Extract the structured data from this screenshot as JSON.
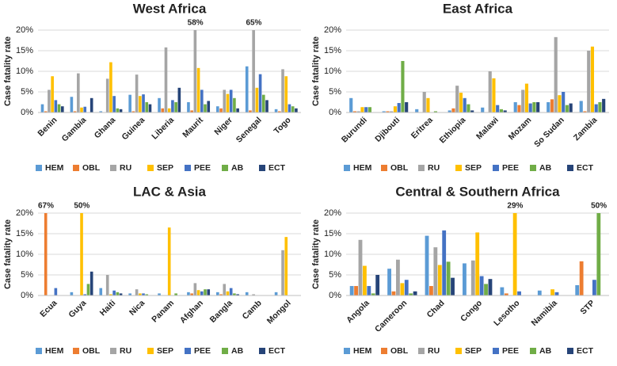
{
  "chart_data": [
    {
      "type": "bar",
      "title": "West Africa",
      "ylabel": "Case fatality rate",
      "categories": [
        "Benin",
        "Gambia",
        "Ghana",
        "Guinea",
        "Liberia",
        "Maurit",
        "Niger",
        "Senegal",
        "Togo"
      ],
      "series": [
        {
          "name": "HEM",
          "color": "#5b9bd5",
          "values": [
            2,
            3.8,
            0.3,
            4.3,
            3.5,
            2.5,
            1.5,
            11.2,
            0.8
          ]
        },
        {
          "name": "OBL",
          "color": "#ed7d31",
          "values": [
            0.3,
            0.3,
            0,
            0.3,
            1,
            0.5,
            1,
            0.5,
            0.3
          ]
        },
        {
          "name": "RU",
          "color": "#a5a5a5",
          "values": [
            5.5,
            9.5,
            8.2,
            9.2,
            15.8,
            58,
            5.5,
            65,
            10.5
          ],
          "value_labels": [
            null,
            null,
            null,
            null,
            null,
            "58%",
            null,
            "65%",
            null
          ]
        },
        {
          "name": "SEP",
          "color": "#ffc000",
          "values": [
            8.8,
            1.2,
            12.2,
            4,
            1,
            10.8,
            4.5,
            6,
            8.8
          ]
        },
        {
          "name": "PEE",
          "color": "#4472c4",
          "values": [
            3,
            1.4,
            4,
            4.4,
            3,
            5.5,
            5.5,
            9.3,
            2
          ]
        },
        {
          "name": "AB",
          "color": "#70ad47",
          "values": [
            2,
            0,
            1,
            2.5,
            2.5,
            2,
            3.5,
            4.3,
            1.5
          ]
        },
        {
          "name": "ECT",
          "color": "#264478",
          "values": [
            1.5,
            3.5,
            0.8,
            2,
            6,
            2.8,
            1,
            3,
            1
          ]
        }
      ],
      "ylim": [
        0,
        20
      ],
      "yticks": [
        {
          "value": 0,
          "label": "0%"
        },
        {
          "value": 5,
          "label": "5%"
        },
        {
          "value": 10,
          "label": "10%"
        },
        {
          "value": 15,
          "label": "15%"
        },
        {
          "value": 20,
          "label": "20%"
        }
      ],
      "grid": true,
      "legend": "bottom"
    },
    {
      "type": "bar",
      "title": "East Africa",
      "ylabel": "Case fatality rate",
      "categories": [
        "Burundi",
        "Djibouti",
        "Eritrea",
        "Ethiopia",
        "Malawi",
        "Mozam",
        "So Sudan",
        "Zambia"
      ],
      "series": [
        {
          "name": "HEM",
          "color": "#5b9bd5",
          "values": [
            3.5,
            0.3,
            0.8,
            0.5,
            1.2,
            2.5,
            2.5,
            2.8
          ]
        },
        {
          "name": "OBL",
          "color": "#ed7d31",
          "values": [
            0.3,
            0.3,
            0,
            1,
            0,
            1.8,
            3.2,
            0.3
          ]
        },
        {
          "name": "RU",
          "color": "#a5a5a5",
          "values": [
            0.3,
            0.3,
            5,
            6.5,
            10,
            5.5,
            18.3,
            15
          ]
        },
        {
          "name": "SEP",
          "color": "#ffc000",
          "values": [
            1.3,
            1.5,
            3.5,
            4.8,
            8.3,
            7,
            4.2,
            16
          ]
        },
        {
          "name": "PEE",
          "color": "#4472c4",
          "values": [
            1.3,
            2.3,
            0,
            3.5,
            1.8,
            2.2,
            5,
            2
          ]
        },
        {
          "name": "AB",
          "color": "#70ad47",
          "values": [
            1.3,
            12.5,
            0.3,
            2,
            0.8,
            2.5,
            1.8,
            2.5
          ]
        },
        {
          "name": "ECT",
          "color": "#264478",
          "values": [
            0,
            2.5,
            0,
            0.5,
            0.5,
            2.5,
            2.2,
            3.3
          ]
        }
      ],
      "ylim": [
        0,
        20
      ],
      "yticks": [
        {
          "value": 0,
          "label": "0%"
        },
        {
          "value": 5,
          "label": "5%"
        },
        {
          "value": 10,
          "label": "10%"
        },
        {
          "value": 15,
          "label": "15%"
        },
        {
          "value": 20,
          "label": "20%"
        }
      ],
      "grid": true,
      "legend": "bottom"
    },
    {
      "type": "bar",
      "title": "LAC & Asia",
      "ylabel": "Case fatality rate",
      "categories": [
        "Ecua",
        "Guya",
        "Haiti",
        "Nica",
        "Panam",
        "Afghan",
        "Bangla",
        "Camb",
        "Mongol"
      ],
      "series": [
        {
          "name": "HEM",
          "color": "#5b9bd5",
          "values": [
            0,
            0.8,
            1.8,
            0.5,
            0.5,
            0.8,
            0.8,
            0.8,
            0.8
          ]
        },
        {
          "name": "OBL",
          "color": "#ed7d31",
          "values": [
            67,
            0,
            0,
            0,
            0,
            0.5,
            0.3,
            0,
            0
          ],
          "value_labels": [
            "67%",
            null,
            null,
            null,
            null,
            null,
            null,
            null,
            null
          ]
        },
        {
          "name": "RU",
          "color": "#a5a5a5",
          "values": [
            0,
            0,
            5,
            1.5,
            0,
            3,
            2.8,
            0.3,
            11
          ]
        },
        {
          "name": "SEP",
          "color": "#ffc000",
          "values": [
            0,
            50,
            0.3,
            0.5,
            16.5,
            1.3,
            1,
            0,
            14.2
          ],
          "value_labels": [
            null,
            "50%",
            null,
            null,
            null,
            null,
            null,
            null,
            null
          ]
        },
        {
          "name": "PEE",
          "color": "#4472c4",
          "values": [
            1.8,
            0.3,
            1.2,
            0.5,
            0,
            1,
            1.8,
            0,
            0
          ]
        },
        {
          "name": "AB",
          "color": "#70ad47",
          "values": [
            0,
            2.8,
            0.8,
            0.3,
            0.5,
            1.5,
            0.5,
            0,
            0
          ]
        },
        {
          "name": "ECT",
          "color": "#264478",
          "values": [
            0,
            5.8,
            0.5,
            0,
            0,
            1.5,
            0.3,
            0,
            0
          ]
        }
      ],
      "ylim": [
        0,
        20
      ],
      "yticks": [
        {
          "value": 0,
          "label": "0%"
        },
        {
          "value": 5,
          "label": "5%"
        },
        {
          "value": 10,
          "label": "10%"
        },
        {
          "value": 15,
          "label": "15%"
        },
        {
          "value": 20,
          "label": "20%"
        }
      ],
      "grid": true,
      "legend": "bottom"
    },
    {
      "type": "bar",
      "title": "Central & Southern Africa",
      "ylabel": "Case fatality rate",
      "categories": [
        "Angola",
        "Cameroon",
        "Chad",
        "Congo",
        "Lesotho",
        "Namibia",
        "STP"
      ],
      "series": [
        {
          "name": "HEM",
          "color": "#5b9bd5",
          "values": [
            2.3,
            6.5,
            14.5,
            7.8,
            2,
            1.2,
            2.5
          ]
        },
        {
          "name": "OBL",
          "color": "#ed7d31",
          "values": [
            2.3,
            1,
            2.3,
            0,
            0.5,
            0,
            8.3
          ]
        },
        {
          "name": "RU",
          "color": "#a5a5a5",
          "values": [
            13.5,
            8.7,
            11.7,
            8.5,
            0,
            0,
            0
          ]
        },
        {
          "name": "SEP",
          "color": "#ffc000",
          "values": [
            7.2,
            3,
            7.4,
            15.3,
            29,
            1.5,
            0
          ],
          "value_labels": [
            null,
            null,
            null,
            null,
            "29%",
            null,
            null
          ]
        },
        {
          "name": "PEE",
          "color": "#4472c4",
          "values": [
            2.3,
            3.8,
            15.8,
            4.7,
            1,
            0.8,
            3.8
          ]
        },
        {
          "name": "AB",
          "color": "#70ad47",
          "values": [
            0.5,
            0.5,
            8.2,
            2.8,
            0,
            0,
            50
          ],
          "value_labels": [
            null,
            null,
            null,
            null,
            null,
            null,
            "50%"
          ]
        },
        {
          "name": "ECT",
          "color": "#264478",
          "values": [
            5,
            1,
            4.3,
            4,
            0,
            0,
            0
          ]
        }
      ],
      "ylim": [
        0,
        20
      ],
      "yticks": [
        {
          "value": 0,
          "label": "0%"
        },
        {
          "value": 5,
          "label": "5%"
        },
        {
          "value": 10,
          "label": "10%"
        },
        {
          "value": 15,
          "label": "15%"
        },
        {
          "value": 20,
          "label": "20%"
        }
      ],
      "grid": true,
      "legend": "bottom"
    }
  ]
}
